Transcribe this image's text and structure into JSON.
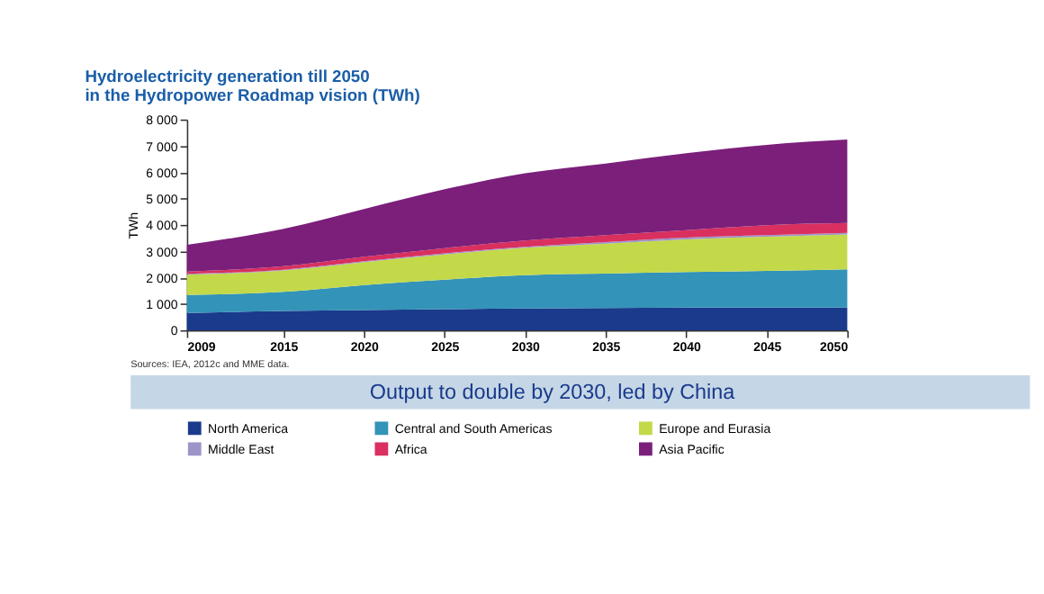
{
  "chart_data": {
    "type": "area",
    "stacked": true,
    "title": [
      "Hydroelectricity generation till 2050",
      "in the Hydropower Roadmap vision (TWh)"
    ],
    "ylabel": "TWh",
    "x": [
      2009,
      2015,
      2020,
      2025,
      2030,
      2035,
      2040,
      2045,
      2050
    ],
    "series": [
      {
        "name": "North America",
        "color": "#1a3a8c",
        "values": [
          655,
          730,
          770,
          800,
          830,
          845,
          860,
          860,
          860
        ]
      },
      {
        "name": "Central and South Americas",
        "color": "#3393b8",
        "values": [
          685,
          725,
          945,
          1120,
          1265,
          1305,
          1350,
          1395,
          1455
        ]
      },
      {
        "name": "Europe and Eurasia",
        "color": "#c3d94a",
        "values": [
          770,
          815,
          875,
          960,
          1035,
          1140,
          1240,
          1295,
          1325
        ]
      },
      {
        "name": "Middle East",
        "color": "#9d94c8",
        "values": [
          30,
          30,
          30,
          40,
          40,
          60,
          70,
          60,
          60
        ]
      },
      {
        "name": "Africa",
        "color": "#d9305f",
        "values": [
          90,
          130,
          170,
          200,
          240,
          260,
          280,
          380,
          370
        ]
      },
      {
        "name": "Asia Pacific",
        "color": "#7b1f7a",
        "values": [
          1015,
          1420,
          1810,
          2230,
          2550,
          2720,
          2920,
          3050,
          3170
        ]
      }
    ],
    "xlim": [
      2009,
      2050
    ],
    "xticks": [
      2009,
      2015,
      2020,
      2025,
      2030,
      2035,
      2040,
      2045,
      2050
    ],
    "ylim": [
      0,
      8000
    ],
    "yticks": [
      0,
      {
        "value": 1000,
        "label": "1 000"
      },
      {
        "value": 2000,
        "label": "2 000"
      },
      {
        "value": 3000,
        "label": "3 000"
      },
      {
        "value": 4000,
        "label": "4 000"
      },
      {
        "value": 5000,
        "label": "5 000"
      },
      {
        "value": 6000,
        "label": "6 000"
      },
      {
        "value": 7000,
        "label": "7 000"
      },
      {
        "value": 8000,
        "label": "8 000"
      }
    ],
    "grid": false,
    "legend": "bottom",
    "annotations": [
      "Sources: IEA, 2012c and MME data.",
      "Output to double by 2030, led by China"
    ]
  }
}
